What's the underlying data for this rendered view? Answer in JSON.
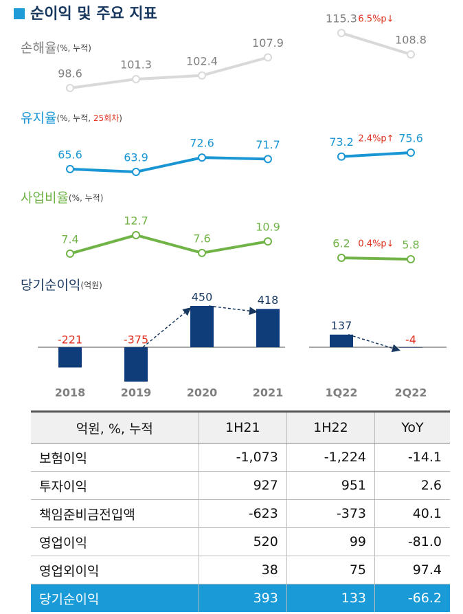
{
  "title": "순이익 및 주요 지표",
  "chart_data": [
    {
      "type": "line",
      "title": "손해율",
      "unit": [
        {
          "text": "(%, 누적)",
          "color": "#404040"
        }
      ],
      "color": "#d9d9d9",
      "label_color": "#7f7f7f",
      "annual": [
        98.6,
        101.3,
        102.4,
        107.9
      ],
      "quarterly": [
        115.3,
        108.8
      ],
      "change_label": "6.5%p↓"
    },
    {
      "type": "line",
      "title": "유지율",
      "unit": [
        {
          "text": "(%, 누적, ",
          "color": "#404040"
        },
        {
          "text": "25회차",
          "color": "#e0301e"
        },
        {
          "text": ")",
          "color": "#404040"
        }
      ],
      "color": "#1a96d4",
      "label_color": "#1a96d4",
      "annual": [
        65.6,
        63.9,
        72.6,
        71.7
      ],
      "quarterly": [
        73.2,
        75.6
      ],
      "change_label": "2.4%p↑"
    },
    {
      "type": "line",
      "title": "사업비율",
      "unit": [
        {
          "text": "(%, 누적)",
          "color": "#404040"
        }
      ],
      "color": "#70b347",
      "label_color": "#70b347",
      "annual": [
        7.4,
        12.7,
        7.6,
        10.9
      ],
      "quarterly": [
        6.2,
        5.8
      ],
      "change_label": "0.4%p↓"
    },
    {
      "type": "bar",
      "title": "당기순이익",
      "unit": [
        {
          "text": "(억원)",
          "color": "#404040"
        }
      ],
      "color": "#0f3d7a",
      "label_color": "#17375e",
      "categories": [
        "2018",
        "2019",
        "2020",
        "2021"
      ],
      "values": [
        -221,
        -375,
        450,
        418
      ],
      "quarter_categories": [
        "1Q22",
        "2Q22"
      ],
      "quarter_values": [
        137,
        -4
      ]
    }
  ],
  "table": {
    "header": [
      "억원, %, 누적",
      "1H21",
      "1H22",
      "YoY"
    ],
    "rows": [
      [
        "보험이익",
        "-1,073",
        "-1,224",
        "-14.1"
      ],
      [
        "투자이익",
        "927",
        "951",
        "2.6"
      ],
      [
        "책임준비금전입액",
        "-623",
        "-373",
        "40.1"
      ],
      [
        "영업이익",
        "520",
        "99",
        "-81.0"
      ],
      [
        "영업외이익",
        "38",
        "75",
        "97.4"
      ],
      [
        "당기순이익",
        "393",
        "133",
        "-66.2"
      ]
    ]
  }
}
